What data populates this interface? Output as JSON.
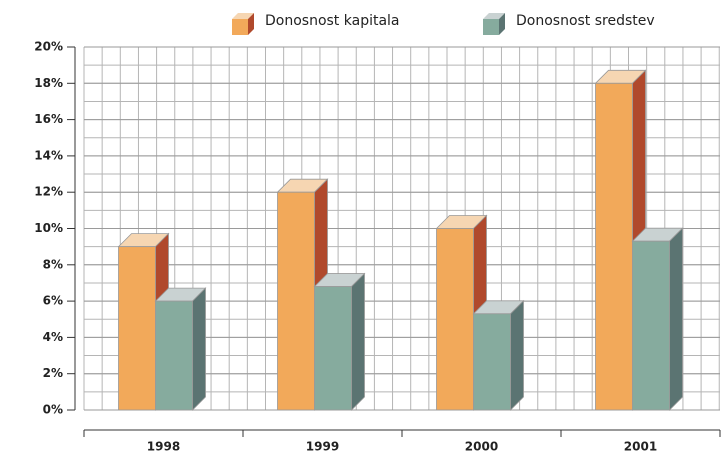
{
  "chart_data": {
    "type": "bar3d",
    "categories": [
      "1998",
      "1999",
      "2000",
      "2001"
    ],
    "series": [
      {
        "name": "Donosnost kapitala",
        "color": "#f2a95a",
        "side_color": "#b0492c",
        "top_color": "#f6d6b2",
        "values": [
          9,
          12,
          10,
          18
        ]
      },
      {
        "name": "Donosnost sredstev",
        "color": "#86ab9e",
        "side_color": "#5b7472",
        "top_color": "#c9d2d2",
        "values": [
          6,
          6.8,
          5.3,
          9.3
        ]
      }
    ],
    "ylim": [
      0,
      20
    ],
    "yticks": [
      {
        "value": 0,
        "label": "0%"
      },
      {
        "value": 2,
        "label": "2%"
      },
      {
        "value": 4,
        "label": "4%"
      },
      {
        "value": 6,
        "label": "6%"
      },
      {
        "value": 8,
        "label": "8%"
      },
      {
        "value": 10,
        "label": "10%"
      },
      {
        "value": 12,
        "label": "12%"
      },
      {
        "value": 14,
        "label": "14%"
      },
      {
        "value": 16,
        "label": "16%"
      },
      {
        "value": 18,
        "label": "18%"
      },
      {
        "value": 20,
        "label": "20%"
      }
    ],
    "grid": true,
    "legend": "top"
  }
}
